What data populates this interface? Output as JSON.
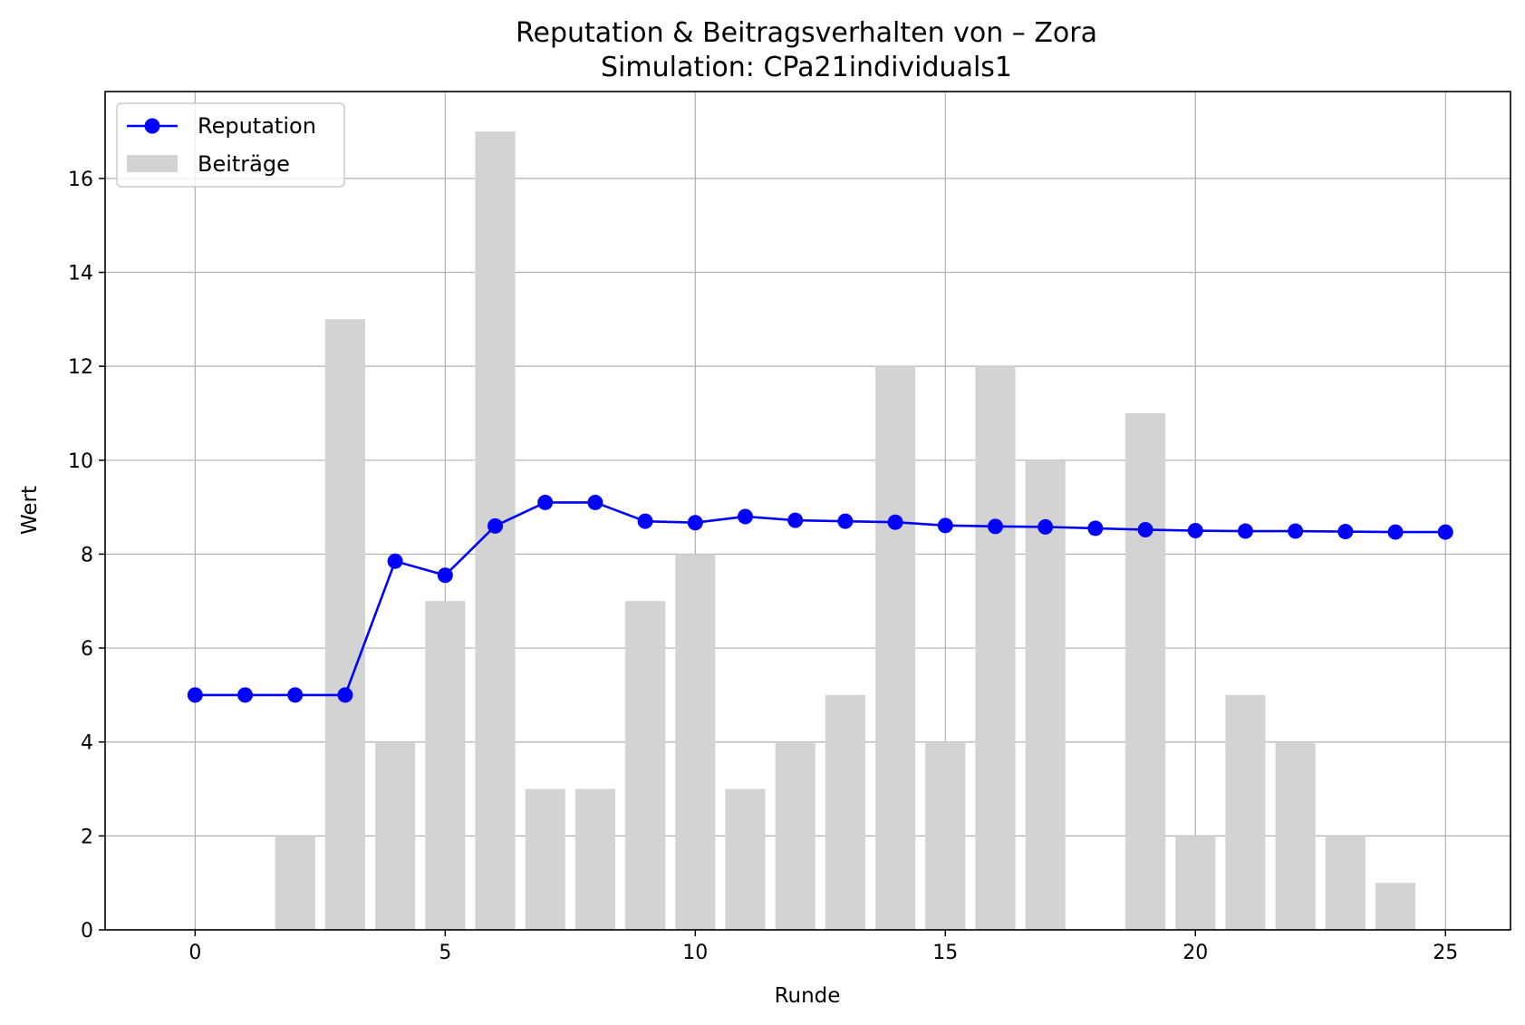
{
  "chart_data": {
    "type": "bar+line",
    "title": "Reputation & Beitragsverhalten von – Zora",
    "subtitle": "Simulation: CPa21individuals1",
    "xlabel": "Runde",
    "ylabel": "Wert",
    "xlim": [
      -1.8,
      26.3
    ],
    "ylim": [
      0,
      17.85
    ],
    "xticks": [
      0,
      5,
      10,
      15,
      20,
      25
    ],
    "yticks": [
      0,
      2,
      4,
      6,
      8,
      10,
      12,
      14,
      16
    ],
    "grid": true,
    "legend_position": "top-left",
    "x": [
      0,
      1,
      2,
      3,
      4,
      5,
      6,
      7,
      8,
      9,
      10,
      11,
      12,
      13,
      14,
      15,
      16,
      17,
      18,
      19,
      20,
      21,
      22,
      23,
      24,
      25
    ],
    "series": [
      {
        "name": "Reputation",
        "kind": "line",
        "color": "#0000ff",
        "values": [
          5.0,
          5.0,
          5.0,
          5.0,
          7.85,
          7.55,
          8.6,
          9.1,
          9.1,
          8.7,
          8.67,
          8.8,
          8.72,
          8.7,
          8.68,
          8.61,
          8.59,
          8.58,
          8.55,
          8.52,
          8.5,
          8.49,
          8.49,
          8.48,
          8.47,
          8.47
        ]
      },
      {
        "name": "Beiträge",
        "kind": "bar",
        "color": "#d3d3d3",
        "values": [
          0,
          0,
          2,
          13,
          4,
          7,
          17,
          3,
          3,
          7,
          8,
          3,
          4,
          5,
          12,
          4,
          12,
          10,
          0,
          11,
          2,
          5,
          4,
          2,
          1,
          0
        ]
      }
    ]
  }
}
